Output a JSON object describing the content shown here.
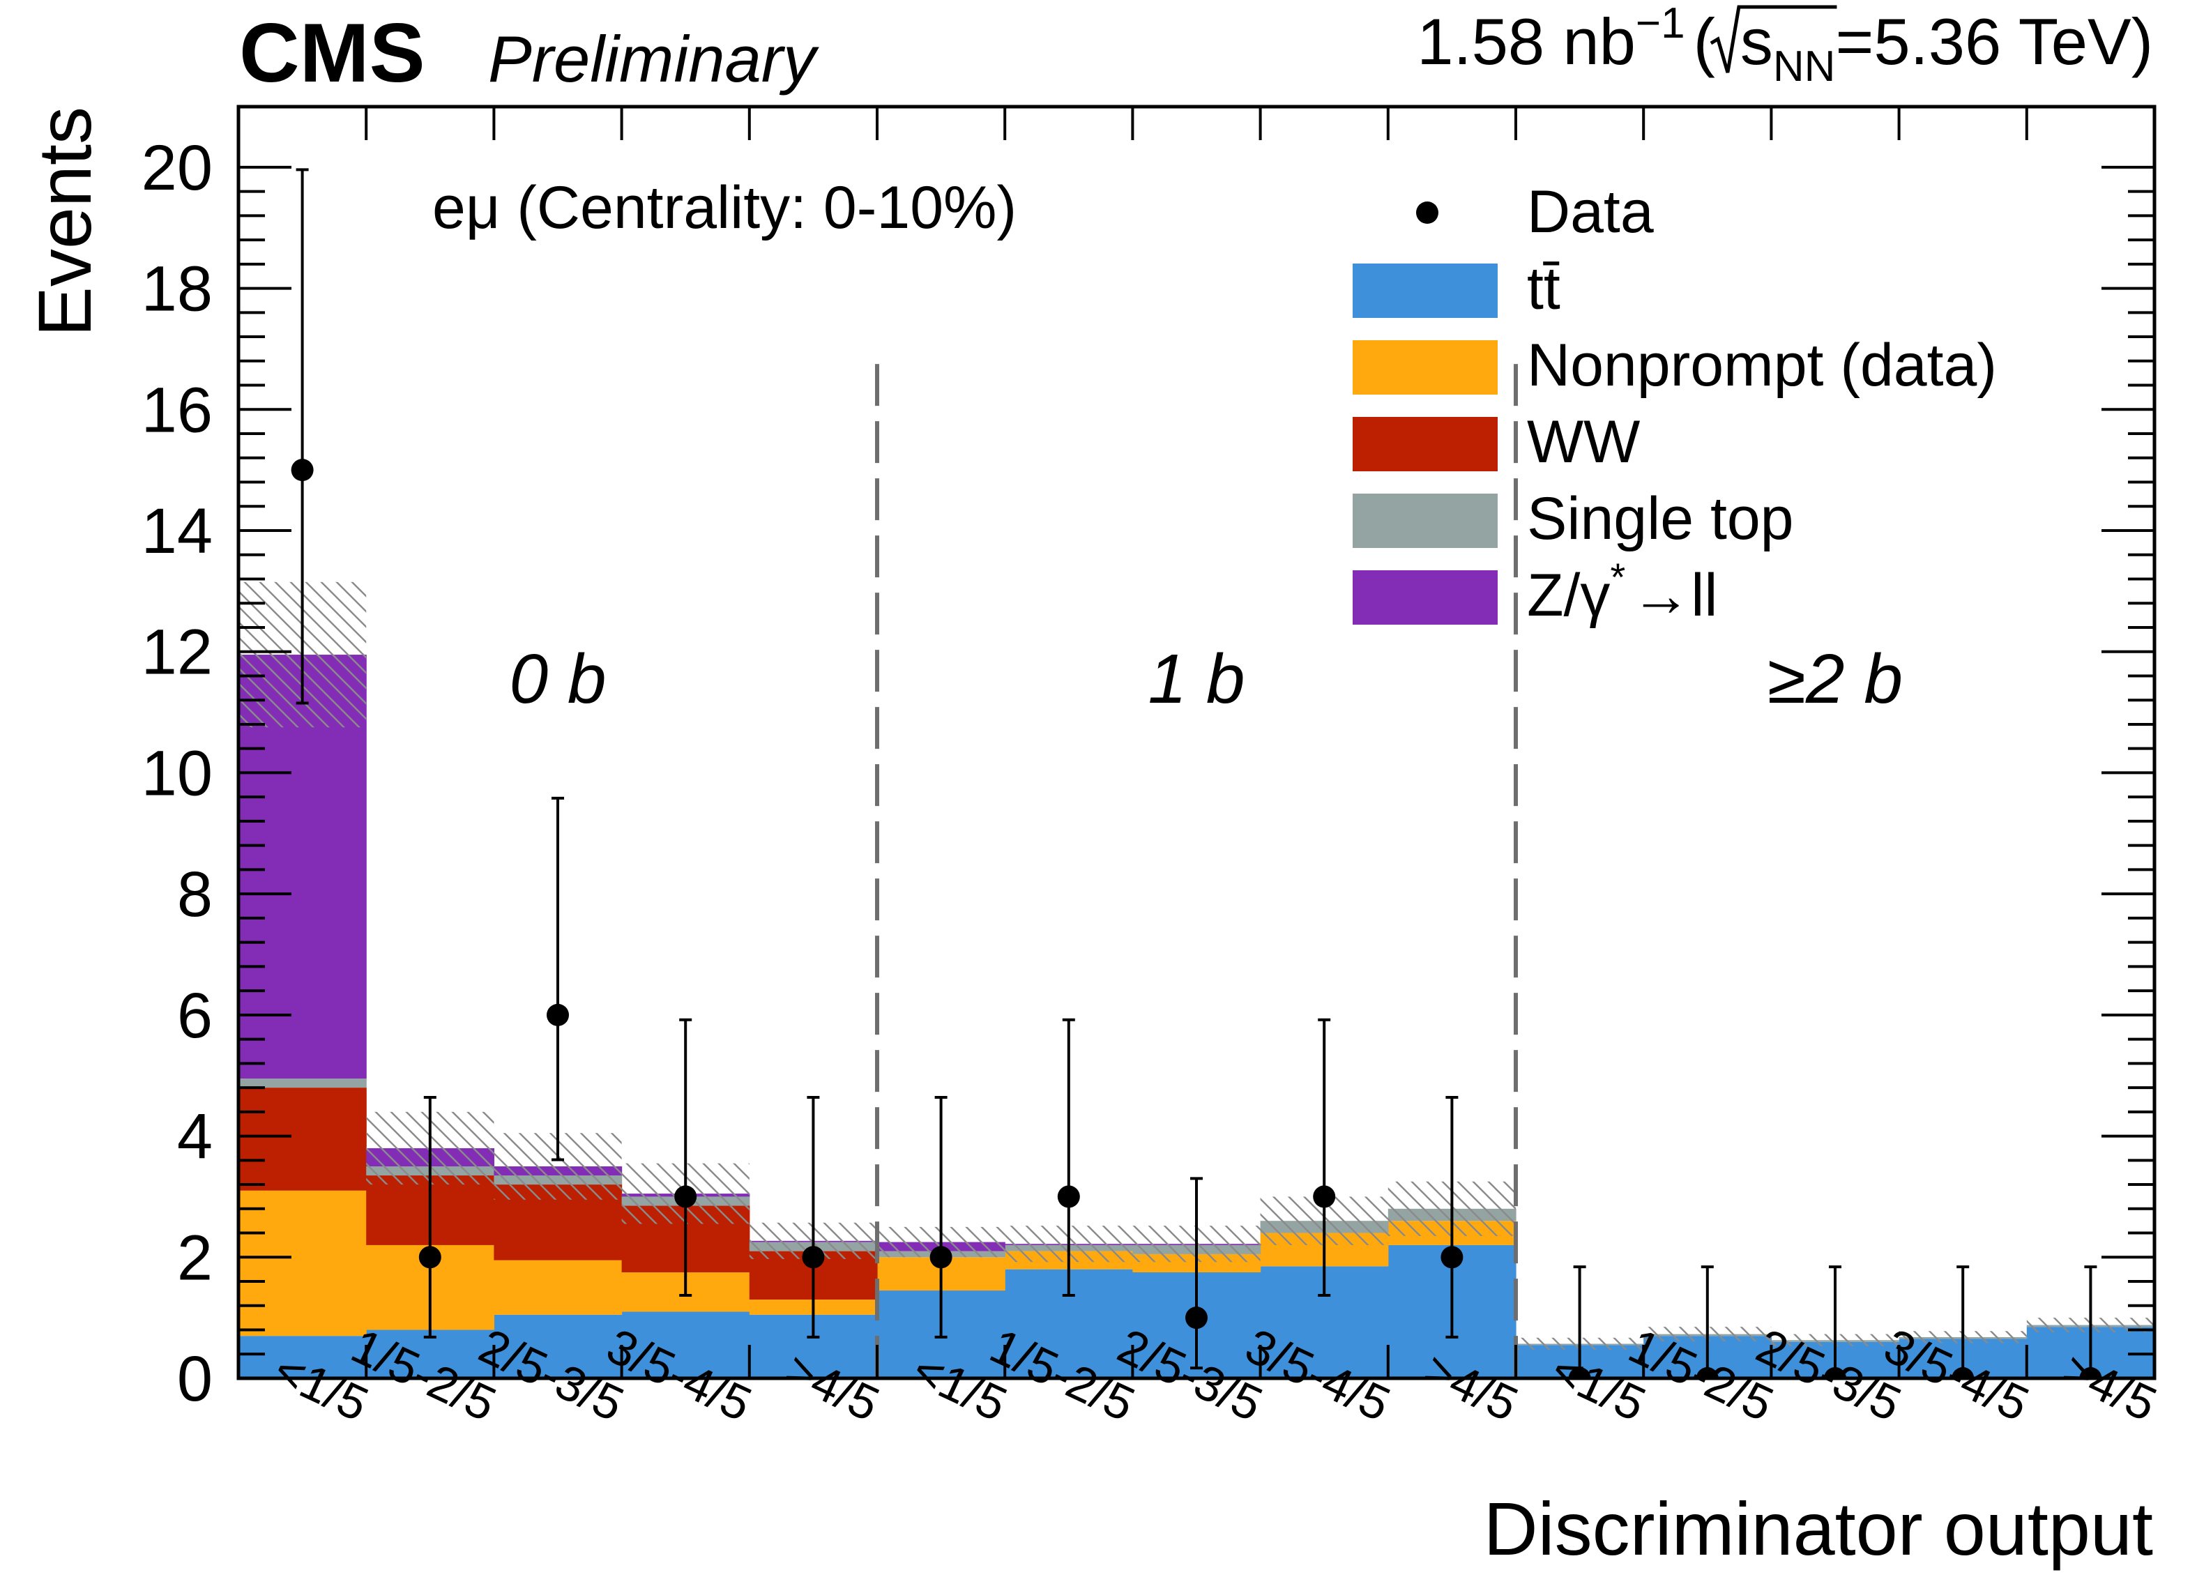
{
  "header": {
    "experiment": "CMS",
    "status": "Preliminary",
    "lumi_text": "1.58 nb",
    "lumi_exp": "−1",
    "sqrt_open": "(",
    "sqrt_s": "s",
    "sqrt_sub": "NN",
    "energy": "=5.36 TeV)"
  },
  "chart_data": {
    "type": "bar",
    "stacked": true,
    "title": "eμ (Centrality: 0-10%)",
    "channel_label": "eμ (Centrality: 0-10%)",
    "xlabel": "Discriminator output",
    "ylabel": "Events",
    "ylim": [
      0,
      21
    ],
    "yticks": [
      0,
      2,
      4,
      6,
      8,
      10,
      12,
      14,
      16,
      18,
      20
    ],
    "bin_labels": [
      "<1/5",
      "1/5-2/5",
      "2/5-3/5",
      "3/5-4/5",
      ">4/5",
      "<1/5",
      "1/5-2/5",
      "2/5-3/5",
      "3/5-4/5",
      ">4/5",
      "<1/5",
      "1/5-2/5",
      "2/5-3/5",
      "3/5-4/5",
      ">4/5"
    ],
    "regions": [
      {
        "label": "0 b",
        "bins": [
          0,
          4
        ]
      },
      {
        "label": "1 b",
        "bins": [
          5,
          9
        ]
      },
      {
        "label": "≥2 b",
        "bins": [
          10,
          14
        ]
      }
    ],
    "series": [
      {
        "name": "tt̄",
        "color": "#3f90da",
        "values": [
          0.7,
          0.8,
          1.05,
          1.1,
          1.05,
          1.45,
          1.8,
          1.75,
          1.85,
          2.2,
          0.55,
          0.7,
          0.6,
          0.65,
          0.85
        ]
      },
      {
        "name": "Nonprompt (data)",
        "color": "#ffa90e",
        "values": [
          2.4,
          1.4,
          0.9,
          0.65,
          0.25,
          0.55,
          0.3,
          0.3,
          0.55,
          0.4,
          0,
          0,
          0,
          0,
          0
        ]
      },
      {
        "name": "WW",
        "color": "#bd1f01",
        "values": [
          1.7,
          1.15,
          1.25,
          1.1,
          0.8,
          0,
          0,
          0,
          0,
          0,
          0,
          0,
          0,
          0,
          0
        ]
      },
      {
        "name": "Single top",
        "color": "#94a4a2",
        "values": [
          0.15,
          0.15,
          0.15,
          0.15,
          0.15,
          0.1,
          0.1,
          0.15,
          0.2,
          0.2,
          0.02,
          0.03,
          0.03,
          0.03,
          0.03
        ]
      },
      {
        "name": "Z/γ*→ll",
        "color": "#832db6",
        "values": [
          7.0,
          0.3,
          0.15,
          0.05,
          0.02,
          0.15,
          0.02,
          0.02,
          0,
          0,
          0,
          0,
          0,
          0,
          0
        ]
      }
    ],
    "uncertainty": [
      1.2,
      0.6,
      0.55,
      0.5,
      0.3,
      0.25,
      0.3,
      0.3,
      0.4,
      0.45,
      0.1,
      0.12,
      0.1,
      0.1,
      0.12
    ],
    "data": {
      "name": "Data",
      "values": [
        15,
        2,
        6,
        3,
        2,
        2,
        3,
        1,
        3,
        2,
        0,
        0,
        0,
        0,
        0
      ],
      "err_lo": [
        3.85,
        1.32,
        2.39,
        1.63,
        1.32,
        1.32,
        1.63,
        0.83,
        1.63,
        1.32,
        0,
        0,
        0,
        0,
        0
      ],
      "err_hi": [
        4.96,
        2.64,
        3.58,
        2.92,
        2.64,
        2.64,
        2.92,
        2.3,
        2.92,
        2.64,
        1.84,
        1.84,
        1.84,
        1.84,
        1.84
      ]
    },
    "legend_position": "top-right",
    "legend": {
      "data": "Data",
      "ttbar": "tt̄",
      "nonprompt": "Nonprompt (data)",
      "ww": "WW",
      "singletop": "Single top",
      "dy_a": "Z/γ",
      "dy_star": "*",
      "dy_b": "→ll"
    }
  }
}
